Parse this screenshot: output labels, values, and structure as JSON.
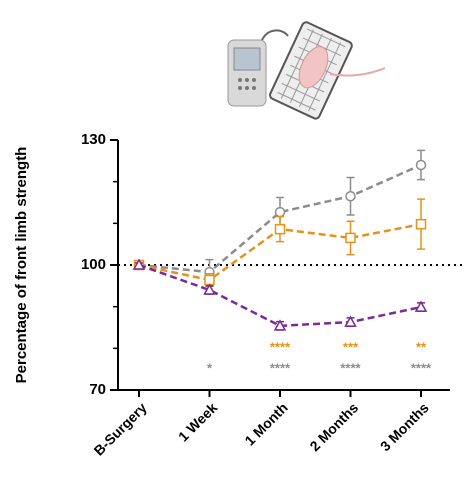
{
  "chart_data": {
    "type": "line",
    "y_label": "Percentage of front limb strength",
    "categories": [
      "B-Surgery",
      "1 Week",
      "1 Month",
      "2 Months",
      "3 Months"
    ],
    "series": [
      {
        "color": "#8c8c8c",
        "marker": "circle",
        "values": [
          100,
          98.3,
          112.7,
          116.5,
          124
        ],
        "errors": [
          0.5,
          3,
          3.5,
          4.5,
          3.5
        ]
      },
      {
        "color": "#e8901a",
        "marker": "square",
        "values": [
          100,
          96.4,
          108.6,
          106.5,
          109.8
        ],
        "errors": [
          0.5,
          1.5,
          3,
          4,
          6
        ]
      },
      {
        "color": "#7b2a96",
        "marker": "triangle",
        "values": [
          100,
          94,
          85.4,
          86.3,
          89.9
        ],
        "errors": [
          0.5,
          1,
          1,
          1,
          1
        ]
      }
    ],
    "significance": [
      {
        "color": "#e8901a",
        "labels": [
          null,
          null,
          "****",
          "***",
          "**"
        ]
      },
      {
        "color": "#8c8c8c",
        "labels": [
          null,
          "*",
          "****",
          "****",
          "****"
        ]
      }
    ],
    "ylim": [
      70,
      130
    ],
    "yticks": [
      70,
      100,
      130
    ],
    "minor_yticks": [
      80,
      90,
      110,
      120
    ],
    "reference_line": 100
  }
}
